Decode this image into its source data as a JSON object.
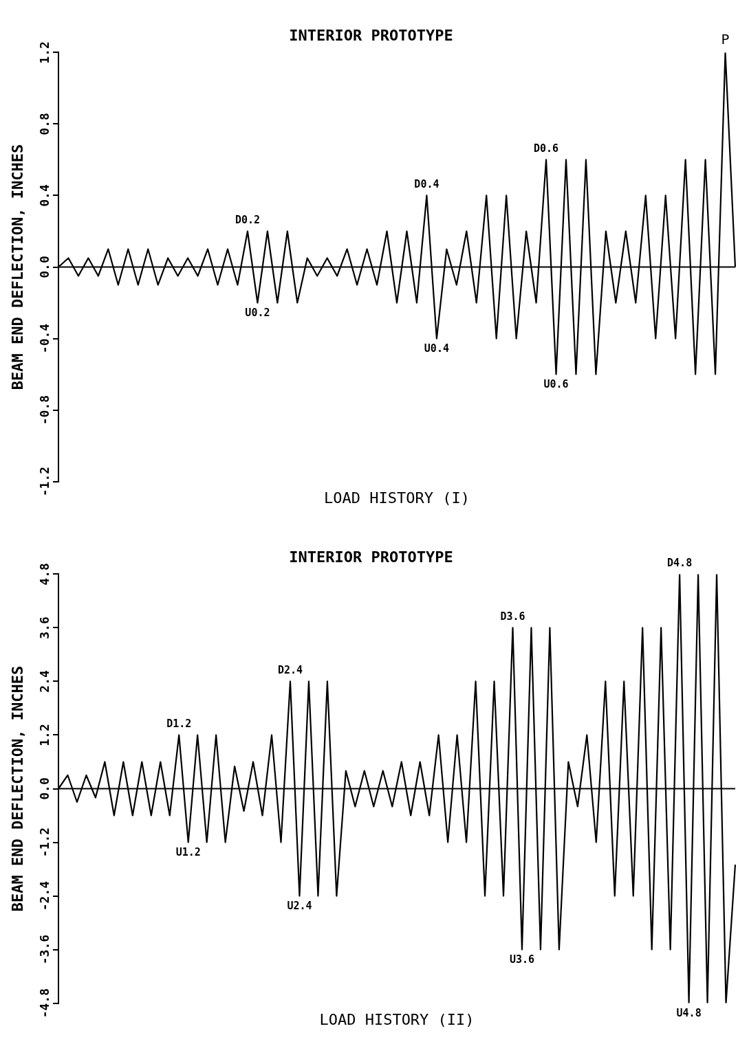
{
  "chart_data": [
    {
      "type": "line",
      "title": "INTERIOR PROTOTYPE",
      "xlabel": "LOAD HISTORY (I)",
      "ylabel": "BEAM END DEFLECTION, INCHES",
      "color": "#000000",
      "marker": "none",
      "grid": false,
      "legend": false,
      "tick_labels": "y",
      "categories": [
        null,
        null,
        null,
        null,
        null,
        null,
        null,
        null,
        null,
        null,
        null,
        null,
        null,
        null,
        null,
        null,
        null,
        null,
        null,
        null,
        null,
        null,
        null,
        null,
        null,
        null,
        null,
        null,
        null,
        null,
        null,
        null,
        null,
        null,
        null,
        null,
        null,
        null,
        null,
        null,
        null,
        null,
        null,
        null,
        null,
        null,
        null,
        null,
        null,
        null,
        null,
        null,
        null,
        null,
        null,
        null,
        null,
        null,
        null,
        null,
        null,
        null,
        null,
        null,
        null,
        null,
        null,
        null,
        null
      ],
      "values": [
        0,
        0.05,
        -0.05,
        0.05,
        -0.05,
        0.1,
        -0.1,
        0.1,
        -0.1,
        0.1,
        -0.1,
        0.05,
        -0.05,
        0.05,
        -0.05,
        0.1,
        -0.1,
        0.1,
        -0.1,
        0.2,
        -0.2,
        0.2,
        -0.2,
        0.2,
        -0.2,
        0.05,
        -0.05,
        0.05,
        -0.05,
        0.1,
        -0.1,
        0.1,
        -0.1,
        0.2,
        -0.2,
        0.2,
        -0.2,
        0.4,
        -0.4,
        0.1,
        -0.1,
        0.2,
        -0.2,
        0.4,
        -0.4,
        0.4,
        -0.4,
        0.2,
        -0.2,
        0.6,
        -0.6,
        0.6,
        -0.6,
        0.6,
        -0.6,
        0.2,
        -0.2,
        0.2,
        -0.2,
        0.4,
        -0.4,
        0.4,
        -0.4,
        0.6,
        -0.6,
        0.6,
        -0.6,
        1.2,
        0
      ],
      "ylim": [
        -1.2,
        1.2
      ],
      "yticks": [
        -1.2,
        -0.8,
        -0.4,
        {
          "value": 0,
          "label": "0.0"
        },
        0.4,
        0.8,
        1.2
      ],
      "ref_lines": [
        {
          "axis": "y",
          "value": 0
        }
      ],
      "annotations": [
        {
          "text": "D0.2",
          "y": 0.2
        },
        {
          "text": "U0.2",
          "y": -0.2
        },
        {
          "text": "D0.4",
          "y": 0.4
        },
        {
          "text": "U0.4",
          "y": -0.4
        },
        {
          "text": "D0.6",
          "y": 0.6
        },
        {
          "text": "U0.6",
          "y": -0.6
        },
        {
          "text": "P",
          "y": 1.2
        }
      ]
    },
    {
      "type": "line",
      "title": "INTERIOR PROTOTYPE",
      "xlabel": "LOAD HISTORY (II)",
      "ylabel": "BEAM END DEFLECTION, INCHES",
      "color": "#000000",
      "marker": "none",
      "grid": false,
      "legend": false,
      "tick_labels": "y",
      "categories": [
        null,
        null,
        null,
        null,
        null,
        null,
        null,
        null,
        null,
        null,
        null,
        null,
        null,
        null,
        null,
        null,
        null,
        null,
        null,
        null,
        null,
        null,
        null,
        null,
        null,
        null,
        null,
        null,
        null,
        null,
        null,
        null,
        null,
        null,
        null,
        null,
        null,
        null,
        null,
        null,
        null,
        null,
        null,
        null,
        null,
        null,
        null,
        null,
        null,
        null,
        null,
        null,
        null,
        null,
        null,
        null,
        null,
        null,
        null,
        null,
        null,
        null,
        null,
        null,
        null,
        null,
        null,
        null,
        null,
        null,
        null,
        null,
        null,
        null
      ],
      "values": [
        0,
        0.3,
        -0.3,
        0.3,
        -0.2,
        0.6,
        -0.6,
        0.6,
        -0.6,
        0.6,
        -0.6,
        0.6,
        -0.6,
        1.2,
        -1.2,
        1.2,
        -1.2,
        1.2,
        -1.2,
        0.5,
        -0.5,
        0.6,
        -0.6,
        1.2,
        -1.2,
        2.4,
        -2.4,
        2.4,
        -2.4,
        2.4,
        -2.4,
        0.4,
        -0.4,
        0.4,
        -0.4,
        0.4,
        -0.4,
        0.6,
        -0.6,
        0.6,
        -0.6,
        1.2,
        -1.2,
        1.2,
        -1.2,
        2.4,
        -2.4,
        2.4,
        -2.4,
        3.6,
        -3.6,
        3.6,
        -3.6,
        3.6,
        -3.6,
        0.6,
        -0.4,
        1.2,
        -1.2,
        2.4,
        -2.4,
        2.4,
        -2.4,
        3.6,
        -3.6,
        3.6,
        -3.6,
        4.8,
        -4.8,
        4.8,
        -4.8,
        4.8,
        -4.8,
        -1.7
      ],
      "ylim": [
        -4.8,
        4.8
      ],
      "yticks": [
        -4.8,
        -3.6,
        -2.4,
        -1.2,
        {
          "value": 0,
          "label": "0.0"
        },
        1.2,
        2.4,
        3.6,
        4.8
      ],
      "ref_lines": [
        {
          "axis": "y",
          "value": 0
        }
      ],
      "annotations": [
        {
          "text": "D1.2",
          "y": 1.2
        },
        {
          "text": "U1.2",
          "y": -1.2
        },
        {
          "text": "D2.4",
          "y": 2.4
        },
        {
          "text": "U2.4",
          "y": -2.4
        },
        {
          "text": "D3.6",
          "y": 3.6
        },
        {
          "text": "U3.6",
          "y": -3.6
        },
        {
          "text": "D4.8",
          "y": 4.8
        },
        {
          "text": "U4.8",
          "y": -4.8
        }
      ]
    }
  ]
}
